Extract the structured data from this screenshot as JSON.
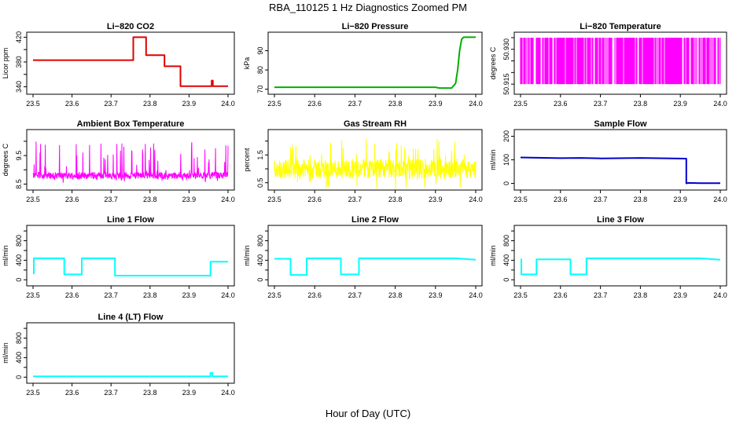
{
  "page": {
    "main_title": "RBA_110125  1 Hz Diagnostics Zoomed PM",
    "xlabel": "Hour of Day (UTC)"
  },
  "chart_data": [
    {
      "type": "line",
      "title": "Li−820 CO2",
      "ylabel": "Licor ppm",
      "color": "#e00000",
      "xlim": [
        23.5,
        24.0
      ],
      "ylim": [
        333,
        423
      ],
      "xticks": [
        23.5,
        23.6,
        23.7,
        23.8,
        23.9,
        24.0
      ],
      "xtick_labels": [
        "23.5",
        "23.6",
        "23.7",
        "23.8",
        "23.9",
        "24.0"
      ],
      "yticks": [
        340,
        360,
        380,
        400,
        420
      ],
      "ytick_labels": [
        "340",
        "",
        "380",
        "",
        "420"
      ],
      "series": [
        {
          "x": [
            23.5,
            23.757,
            23.757,
            23.79,
            23.79,
            23.837,
            23.837,
            23.878,
            23.878,
            23.958,
            23.958,
            23.961,
            23.961,
            24.0
          ],
          "y": [
            383,
            383,
            420,
            420,
            391,
            391,
            373,
            373,
            341,
            341,
            350,
            350,
            341,
            341
          ]
        }
      ]
    },
    {
      "type": "line",
      "title": "Li−820 Pressure",
      "ylabel": "kPa",
      "color": "#00b000",
      "xlim": [
        23.5,
        24.0
      ],
      "ylim": [
        69,
        98
      ],
      "xticks": [
        23.5,
        23.6,
        23.7,
        23.8,
        23.9,
        24.0
      ],
      "xtick_labels": [
        "23.5",
        "23.6",
        "23.7",
        "23.8",
        "23.9",
        "24.0"
      ],
      "yticks": [
        70,
        80,
        90
      ],
      "ytick_labels": [
        "70",
        "80",
        "90"
      ],
      "series": [
        {
          "x": [
            23.5,
            23.9,
            23.91,
            23.94,
            23.95,
            23.955,
            23.96,
            23.965,
            23.97,
            24.0
          ],
          "y": [
            71,
            71,
            70.6,
            70.6,
            73,
            80,
            90,
            96,
            97,
            97
          ]
        }
      ]
    },
    {
      "type": "line",
      "title": "Li−820 Temperature",
      "ylabel": "degrees C",
      "color": "#ff00ff",
      "xlim": [
        23.5,
        24.0
      ],
      "ylim": [
        50.912,
        50.936
      ],
      "xticks": [
        23.5,
        23.6,
        23.7,
        23.8,
        23.9,
        24.0
      ],
      "xtick_labels": [
        "23.5",
        "23.6",
        "23.7",
        "23.8",
        "23.9",
        "24.0"
      ],
      "yticks": [
        50.915,
        50.92,
        50.925,
        50.93,
        50.935
      ],
      "ytick_labels": [
        "50.915",
        "",
        "",
        "50.930",
        ""
      ],
      "series": [
        {
          "x": [
            23.5,
            24.0
          ],
          "y": [
            50.935,
            50.915
          ]
        }
      ]
    },
    {
      "type": "line",
      "title": "Ambient Box Temperature",
      "ylabel": "degrees C",
      "color": "#ff00ff",
      "xlim": [
        23.5,
        24.0
      ],
      "ylim": [
        8.4,
        10.3
      ],
      "xticks": [
        23.5,
        23.6,
        23.7,
        23.8,
        23.9,
        24.0
      ],
      "xtick_labels": [
        "23.5",
        "23.6",
        "23.7",
        "23.8",
        "23.9",
        "24.0"
      ],
      "yticks": [
        8.5,
        9.0,
        9.5,
        10.0
      ],
      "ytick_labels": [
        "8.5",
        "",
        "9.5",
        ""
      ],
      "series": [
        {
          "x": [
            23.5,
            24.0
          ],
          "y": [
            8.8,
            8.8
          ]
        }
      ]
    },
    {
      "type": "line",
      "title": "Gas Stream RH",
      "ylabel": "percent",
      "color": "#ffff00",
      "xlim": [
        23.5,
        24.0
      ],
      "ylim": [
        0.35,
        2.3
      ],
      "xticks": [
        23.5,
        23.6,
        23.7,
        23.8,
        23.9,
        24.0
      ],
      "xtick_labels": [
        "23.5",
        "23.6",
        "23.7",
        "23.8",
        "23.9",
        "24.0"
      ],
      "yticks": [
        0.5,
        1.0,
        1.5,
        2.0
      ],
      "ytick_labels": [
        "0.5",
        "",
        "1.5",
        ""
      ],
      "series": [
        {
          "x": [
            23.5,
            24.0
          ],
          "y": [
            1.0,
            1.0
          ]
        }
      ]
    },
    {
      "type": "line",
      "title": "Sample Flow",
      "ylabel": "ml/min",
      "color": "#0000cc",
      "xlim": [
        23.5,
        24.0
      ],
      "ylim": [
        -15,
        215
      ],
      "xticks": [
        23.5,
        23.6,
        23.7,
        23.8,
        23.9,
        24.0
      ],
      "xtick_labels": [
        "23.5",
        "23.6",
        "23.7",
        "23.8",
        "23.9",
        "24.0"
      ],
      "yticks": [
        0,
        100,
        200
      ],
      "ytick_labels": [
        "0",
        "100",
        "200"
      ],
      "series": [
        {
          "x": [
            23.5,
            23.6,
            23.65,
            23.7,
            23.8,
            23.915,
            23.915,
            23.92,
            23.95,
            24.0
          ],
          "y": [
            110,
            107,
            108,
            106,
            108,
            105,
            0,
            2,
            1,
            1
          ]
        }
      ]
    },
    {
      "type": "line",
      "title": "Line 1 Flow",
      "ylabel": "ml/min",
      "color": "#00ffff",
      "xlim": [
        23.5,
        24.0
      ],
      "ylim": [
        -60,
        1050
      ],
      "xticks": [
        23.5,
        23.6,
        23.7,
        23.8,
        23.9,
        24.0
      ],
      "xtick_labels": [
        "23.5",
        "23.6",
        "23.7",
        "23.8",
        "23.9",
        "24.0"
      ],
      "yticks": [
        0,
        200,
        400,
        600,
        800,
        1000
      ],
      "ytick_labels": [
        "0",
        "",
        "400",
        "",
        "800",
        ""
      ],
      "series": [
        {
          "x": [
            23.5,
            23.502,
            23.502,
            23.58,
            23.58,
            23.625,
            23.625,
            23.71,
            23.71,
            23.955,
            23.955,
            24.0
          ],
          "y": [
            130,
            130,
            440,
            440,
            110,
            110,
            440,
            440,
            85,
            85,
            370,
            370
          ]
        }
      ]
    },
    {
      "type": "line",
      "title": "Line 2 Flow",
      "ylabel": "ml/min",
      "color": "#00ffff",
      "xlim": [
        23.5,
        24.0
      ],
      "ylim": [
        -60,
        1050
      ],
      "xticks": [
        23.5,
        23.6,
        23.7,
        23.8,
        23.9,
        24.0
      ],
      "xtick_labels": [
        "23.5",
        "23.6",
        "23.7",
        "23.8",
        "23.9",
        "24.0"
      ],
      "yticks": [
        0,
        200,
        400,
        600,
        800,
        1000
      ],
      "ytick_labels": [
        "0",
        "",
        "400",
        "",
        "800",
        ""
      ],
      "series": [
        {
          "x": [
            23.5,
            23.54,
            23.54,
            23.58,
            23.58,
            23.665,
            23.665,
            23.71,
            23.71,
            23.95,
            24.0
          ],
          "y": [
            430,
            430,
            100,
            100,
            440,
            440,
            110,
            110,
            440,
            440,
            410
          ]
        }
      ]
    },
    {
      "type": "line",
      "title": "Line 3 Flow",
      "ylabel": "ml/min",
      "color": "#00ffff",
      "xlim": [
        23.5,
        24.0
      ],
      "ylim": [
        -60,
        1050
      ],
      "xticks": [
        23.5,
        23.6,
        23.7,
        23.8,
        23.9,
        24.0
      ],
      "xtick_labels": [
        "23.5",
        "23.6",
        "23.7",
        "23.8",
        "23.9",
        "24.0"
      ],
      "yticks": [
        0,
        200,
        400,
        600,
        800,
        1000
      ],
      "ytick_labels": [
        "0",
        "",
        "400",
        "",
        "800",
        ""
      ],
      "series": [
        {
          "x": [
            23.5,
            23.502,
            23.502,
            23.54,
            23.54,
            23.625,
            23.625,
            23.665,
            23.665,
            23.95,
            24.0
          ],
          "y": [
            420,
            420,
            110,
            110,
            420,
            420,
            110,
            110,
            440,
            440,
            410
          ]
        }
      ]
    },
    {
      "type": "line",
      "title": "Line 4 (LT) Flow",
      "ylabel": "ml/min",
      "color": "#00ffff",
      "xlim": [
        23.5,
        24.0
      ],
      "ylim": [
        -60,
        1050
      ],
      "xticks": [
        23.5,
        23.6,
        23.7,
        23.8,
        23.9,
        24.0
      ],
      "xtick_labels": [
        "23.5",
        "23.6",
        "23.7",
        "23.8",
        "23.9",
        "24.0"
      ],
      "yticks": [
        0,
        200,
        400,
        600,
        800,
        1000
      ],
      "ytick_labels": [
        "0",
        "",
        "400",
        "",
        "800",
        ""
      ],
      "series": [
        {
          "x": [
            23.5,
            23.955,
            23.955,
            23.96,
            23.96,
            24.0
          ],
          "y": [
            15,
            15,
            90,
            90,
            15,
            15
          ]
        }
      ]
    }
  ]
}
